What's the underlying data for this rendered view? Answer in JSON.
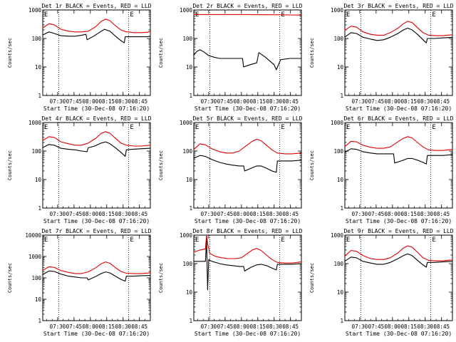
{
  "colors": {
    "events": "#000000",
    "lld": "#e00000",
    "frame": "#000000",
    "background": "#ffffff"
  },
  "common": {
    "ylabel": "Counts/sec",
    "xlabel": "Start Time (30-Dec-08 07:16:20)",
    "xticks": [
      "07:30",
      "07:45",
      "08:00",
      "08:15",
      "08:30",
      "08:45"
    ],
    "marker": "E"
  },
  "chart_data": [
    {
      "type": "line",
      "title": "Det 1r BLACK = Events, RED = LLD",
      "ylog": true,
      "ylim": [
        1,
        1000
      ],
      "yticks": [
        "1",
        "10",
        "100",
        "1000"
      ],
      "xlim": [
        "07:16:20",
        "08:55"
      ],
      "vlines": [
        "07:31",
        "08:35"
      ],
      "series": [
        {
          "name": "Events",
          "x": [
            "07:16",
            "07:22",
            "07:27",
            "07:33",
            "07:40",
            "07:46",
            "07:52",
            "07:56",
            "07:57",
            "08:03",
            "08:09",
            "08:13",
            "08:18",
            "08:22",
            "08:27",
            "08:31",
            "08:32",
            "08:35",
            "08:39",
            "08:46",
            "08:52",
            "08:55"
          ],
          "values": [
            130,
            170,
            150,
            125,
            120,
            120,
            130,
            140,
            90,
            120,
            170,
            210,
            180,
            130,
            90,
            70,
            115,
            115,
            115,
            115,
            115,
            120
          ]
        },
        {
          "name": "LLD",
          "x": [
            "07:16",
            "07:22",
            "07:27",
            "07:33",
            "07:40",
            "07:46",
            "07:52",
            "07:58",
            "08:05",
            "08:10",
            "08:14",
            "08:18",
            "08:23",
            "08:28",
            "08:33",
            "08:35",
            "08:40",
            "08:46",
            "08:52",
            "08:55"
          ],
          "values": [
            230,
            330,
            300,
            210,
            180,
            170,
            170,
            180,
            260,
            400,
            480,
            420,
            280,
            200,
            170,
            170,
            160,
            160,
            165,
            175
          ]
        }
      ]
    },
    {
      "type": "line",
      "title": "Det 2r BLACK = Events, RED = LLD",
      "ylog": true,
      "ylim": [
        1,
        1000
      ],
      "yticks": [
        "1",
        "10",
        "100",
        "1000"
      ],
      "xlim": [
        "07:16:20",
        "08:55"
      ],
      "vlines": [
        "07:31",
        "08:35"
      ],
      "series": [
        {
          "name": "Events",
          "x": [
            "07:16",
            "07:19",
            "07:22",
            "07:26",
            "07:30",
            "07:35",
            "07:40",
            "07:46",
            "07:52",
            "07:57",
            "08:01",
            "08:02",
            "08:08",
            "08:14",
            "08:16",
            "08:22",
            "08:30",
            "08:32",
            "08:36",
            "08:44",
            "08:52",
            "08:55"
          ],
          "values": [
            25,
            35,
            40,
            33,
            25,
            22,
            20,
            20,
            20,
            20,
            20,
            10,
            12,
            14,
            32,
            22,
            12,
            8,
            18,
            20,
            20,
            20
          ]
        },
        {
          "name": "LLD",
          "x": [
            "07:16",
            "07:30",
            "07:45",
            "08:00",
            "08:15",
            "08:30",
            "08:45",
            "08:55"
          ],
          "values": [
            690,
            690,
            690,
            690,
            685,
            680,
            670,
            660
          ]
        }
      ]
    },
    {
      "type": "line",
      "title": "Det 3r BLACK = Events, RED = LLD",
      "ylog": true,
      "ylim": [
        1,
        1000
      ],
      "yticks": [
        "1",
        "10",
        "100",
        "1000"
      ],
      "xlim": [
        "07:16:20",
        "08:55"
      ],
      "vlines": [
        "07:31",
        "08:35"
      ],
      "series": [
        {
          "name": "Events",
          "x": [
            "07:16",
            "07:22",
            "07:27",
            "07:33",
            "07:40",
            "07:46",
            "07:52",
            "07:58",
            "08:05",
            "08:10",
            "08:14",
            "08:18",
            "08:23",
            "08:28",
            "08:31",
            "08:32",
            "08:38",
            "08:46",
            "08:55"
          ],
          "values": [
            110,
            160,
            150,
            110,
            95,
            85,
            90,
            110,
            150,
            200,
            230,
            200,
            140,
            90,
            70,
            100,
            100,
            105,
            110
          ]
        },
        {
          "name": "LLD",
          "x": [
            "07:16",
            "07:22",
            "07:27",
            "07:33",
            "07:40",
            "07:46",
            "07:52",
            "07:58",
            "08:05",
            "08:10",
            "08:14",
            "08:18",
            "08:23",
            "08:28",
            "08:33",
            "08:40",
            "08:46",
            "08:55"
          ],
          "values": [
            190,
            270,
            250,
            170,
            140,
            130,
            130,
            160,
            230,
            330,
            400,
            360,
            240,
            160,
            130,
            125,
            125,
            135
          ]
        }
      ]
    },
    {
      "type": "line",
      "title": "Det 4r BLACK = Events, RED = LLD",
      "ylog": true,
      "ylim": [
        1,
        1000
      ],
      "yticks": [
        "1",
        "10",
        "100",
        "1000"
      ],
      "xlim": [
        "07:16:20",
        "08:55"
      ],
      "vlines": [
        "07:31",
        "08:35"
      ],
      "series": [
        {
          "name": "Events",
          "x": [
            "07:16",
            "07:22",
            "07:27",
            "07:33",
            "07:40",
            "07:46",
            "07:52",
            "07:57",
            "07:58",
            "08:04",
            "08:10",
            "08:14",
            "08:18",
            "08:23",
            "08:28",
            "08:32",
            "08:33",
            "08:38",
            "08:46",
            "08:55"
          ],
          "values": [
            130,
            170,
            160,
            125,
            115,
            110,
            100,
            95,
            130,
            150,
            190,
            210,
            180,
            130,
            90,
            65,
            110,
            115,
            120,
            125
          ]
        },
        {
          "name": "LLD",
          "x": [
            "07:16",
            "07:22",
            "07:27",
            "07:33",
            "07:40",
            "07:46",
            "07:52",
            "07:58",
            "08:05",
            "08:10",
            "08:14",
            "08:18",
            "08:23",
            "08:28",
            "08:33",
            "08:40",
            "08:46",
            "08:55"
          ],
          "values": [
            230,
            320,
            300,
            210,
            180,
            160,
            160,
            190,
            280,
            420,
            480,
            420,
            280,
            190,
            160,
            150,
            150,
            160
          ]
        }
      ]
    },
    {
      "type": "line",
      "title": "Det 5r BLACK = Events, RED = LLD",
      "ylog": true,
      "ylim": [
        1,
        1000
      ],
      "yticks": [
        "1",
        "10",
        "100",
        "1000"
      ],
      "xlim": [
        "07:16:20",
        "08:55"
      ],
      "vlines": [
        "07:31",
        "08:35"
      ],
      "series": [
        {
          "name": "Events",
          "x": [
            "07:16",
            "07:22",
            "07:27",
            "07:33",
            "07:40",
            "07:46",
            "07:52",
            "07:58",
            "08:02",
            "08:03",
            "08:09",
            "08:14",
            "08:18",
            "08:23",
            "08:28",
            "08:32",
            "08:33",
            "08:40",
            "08:46",
            "08:55"
          ],
          "values": [
            55,
            70,
            65,
            50,
            40,
            35,
            32,
            30,
            30,
            20,
            25,
            30,
            30,
            25,
            20,
            18,
            45,
            45,
            45,
            48
          ]
        },
        {
          "name": "LLD",
          "x": [
            "07:16",
            "07:22",
            "07:27",
            "07:33",
            "07:40",
            "07:46",
            "07:52",
            "07:58",
            "08:05",
            "08:10",
            "08:14",
            "08:18",
            "08:23",
            "08:28",
            "08:33",
            "08:40",
            "08:46",
            "08:55"
          ],
          "values": [
            110,
            180,
            165,
            120,
            95,
            85,
            85,
            100,
            160,
            220,
            260,
            230,
            160,
            110,
            85,
            80,
            80,
            85
          ]
        }
      ]
    },
    {
      "type": "line",
      "title": "Det 6r BLACK = Events, RED = LLD",
      "ylog": true,
      "ylim": [
        1,
        1000
      ],
      "yticks": [
        "1",
        "10",
        "100",
        "1000"
      ],
      "xlim": [
        "07:16:20",
        "08:55"
      ],
      "vlines": [
        "07:31",
        "08:35"
      ],
      "series": [
        {
          "name": "Events",
          "x": [
            "07:16",
            "07:22",
            "07:27",
            "07:33",
            "07:40",
            "07:46",
            "07:52",
            "07:58",
            "08:01",
            "08:02",
            "08:08",
            "08:14",
            "08:18",
            "08:23",
            "08:28",
            "08:31",
            "08:32",
            "08:38",
            "08:46",
            "08:55"
          ],
          "values": [
            90,
            120,
            115,
            95,
            85,
            80,
            80,
            80,
            80,
            38,
            45,
            55,
            55,
            48,
            40,
            35,
            70,
            70,
            70,
            75
          ]
        },
        {
          "name": "LLD",
          "x": [
            "07:16",
            "07:22",
            "07:27",
            "07:33",
            "07:40",
            "07:46",
            "07:52",
            "07:58",
            "08:05",
            "08:10",
            "08:14",
            "08:18",
            "08:23",
            "08:28",
            "08:33",
            "08:40",
            "08:46",
            "08:55"
          ],
          "values": [
            140,
            220,
            210,
            160,
            135,
            125,
            125,
            140,
            210,
            280,
            320,
            290,
            200,
            140,
            110,
            105,
            105,
            115
          ]
        }
      ]
    },
    {
      "type": "line",
      "title": "Det 7r BLACK = Events, RED = LLD",
      "ylog": true,
      "ylim": [
        1,
        10000
      ],
      "yticks": [
        "1",
        "10",
        "100",
        "1000",
        "10000"
      ],
      "xlim": [
        "07:16:20",
        "08:55"
      ],
      "vlines": [
        "07:31",
        "08:35"
      ],
      "series": [
        {
          "name": "Events",
          "x": [
            "07:16",
            "07:22",
            "07:27",
            "07:33",
            "07:40",
            "07:46",
            "07:52",
            "07:57",
            "07:58",
            "08:04",
            "08:10",
            "08:14",
            "08:18",
            "08:23",
            "08:28",
            "08:32",
            "08:33",
            "08:40",
            "08:46",
            "08:55"
          ],
          "values": [
            140,
            210,
            200,
            150,
            120,
            110,
            100,
            100,
            80,
            110,
            160,
            190,
            170,
            120,
            85,
            70,
            120,
            120,
            125,
            130
          ]
        },
        {
          "name": "LLD",
          "x": [
            "07:16",
            "07:22",
            "07:27",
            "07:33",
            "07:40",
            "07:46",
            "07:52",
            "07:58",
            "08:05",
            "08:10",
            "08:14",
            "08:18",
            "08:23",
            "08:28",
            "08:33",
            "08:40",
            "08:46",
            "08:55"
          ],
          "values": [
            220,
            330,
            310,
            220,
            180,
            160,
            160,
            190,
            300,
            460,
            560,
            480,
            300,
            200,
            165,
            160,
            160,
            170
          ]
        }
      ]
    },
    {
      "type": "line",
      "title": "Det 8r BLACK = Events, RED = LLD",
      "ylog": true,
      "ylim": [
        1,
        1000
      ],
      "yticks": [
        "1",
        "10",
        "100",
        "1000"
      ],
      "xlim": [
        "07:16:20",
        "08:55"
      ],
      "vlines": [
        "07:31",
        "08:35"
      ],
      "series": [
        {
          "name": "Events",
          "x": [
            "07:16",
            "07:22",
            "07:27",
            "07:28",
            "07:29",
            "07:30",
            "07:31",
            "07:33",
            "07:40",
            "07:46",
            "07:52",
            "07:58",
            "08:02",
            "08:03",
            "08:09",
            "08:14",
            "08:18",
            "08:23",
            "08:28",
            "08:32",
            "08:33",
            "08:40",
            "08:46",
            "08:55"
          ],
          "values": [
            120,
            120,
            120,
            700,
            12,
            140,
            130,
            120,
            100,
            90,
            85,
            80,
            80,
            55,
            75,
            90,
            95,
            85,
            70,
            60,
            95,
            95,
            95,
            100
          ]
        },
        {
          "name": "LLD",
          "x": [
            "07:16",
            "07:22",
            "07:27",
            "07:28",
            "07:29",
            "07:31",
            "07:36",
            "07:42",
            "07:48",
            "07:54",
            "08:00",
            "08:05",
            "08:10",
            "08:14",
            "08:18",
            "08:23",
            "08:28",
            "08:33",
            "08:40",
            "08:46",
            "08:55"
          ],
          "values": [
            250,
            300,
            330,
            1000,
            500,
            230,
            180,
            160,
            150,
            150,
            160,
            220,
            300,
            340,
            290,
            200,
            140,
            110,
            105,
            105,
            115
          ]
        }
      ]
    },
    {
      "type": "line",
      "title": "Det 9r BLACK = Events, RED = LLD",
      "ylog": true,
      "ylim": [
        1,
        1000
      ],
      "yticks": [
        "1",
        "10",
        "100",
        "1000"
      ],
      "xlim": [
        "07:16:20",
        "08:55"
      ],
      "vlines": [
        "07:31",
        "08:35"
      ],
      "series": [
        {
          "name": "Events",
          "x": [
            "07:16",
            "07:22",
            "07:27",
            "07:33",
            "07:40",
            "07:46",
            "07:52",
            "07:58",
            "08:05",
            "08:10",
            "08:14",
            "08:18",
            "08:23",
            "08:28",
            "08:31",
            "08:32",
            "08:38",
            "08:46",
            "08:55"
          ],
          "values": [
            120,
            170,
            160,
            120,
            105,
            95,
            95,
            110,
            150,
            190,
            220,
            190,
            130,
            90,
            75,
            110,
            110,
            115,
            120
          ]
        },
        {
          "name": "LLD",
          "x": [
            "07:16",
            "07:22",
            "07:27",
            "07:33",
            "07:40",
            "07:46",
            "07:52",
            "07:58",
            "08:05",
            "08:10",
            "08:14",
            "08:18",
            "08:23",
            "08:28",
            "08:33",
            "08:40",
            "08:46",
            "08:55"
          ],
          "values": [
            180,
            290,
            270,
            190,
            150,
            140,
            140,
            160,
            240,
            350,
            420,
            380,
            250,
            160,
            130,
            125,
            125,
            135
          ]
        }
      ]
    }
  ]
}
